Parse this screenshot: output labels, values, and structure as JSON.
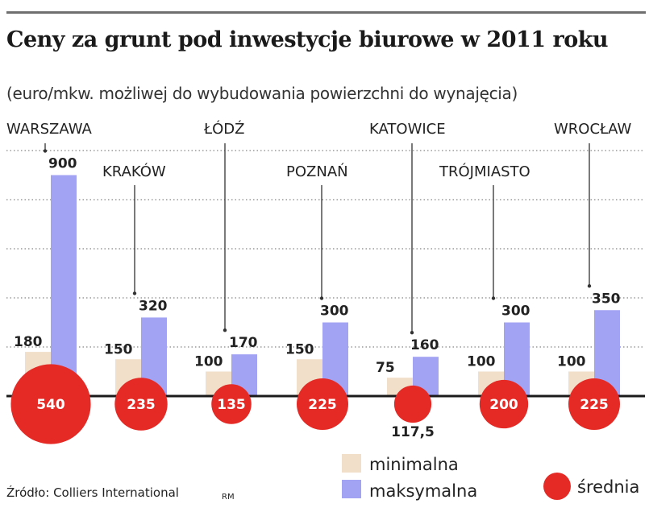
{
  "chart_data": {
    "type": "bar",
    "title": "Ceny za grunt pod inwestycje biurowe w 2011 roku",
    "subtitle": "(euro/mkw. możliwej do wybudowania powierzchni do wynajęcia)",
    "categories": [
      "WARSZAWA",
      "KRAKÓW",
      "ŁÓDŹ",
      "POZNAŃ",
      "KATOWICE",
      "TRÓJMIASTO",
      "WROCŁAW"
    ],
    "series": [
      {
        "name": "minimalna",
        "color": "#f2dfc9",
        "values": [
          180,
          150,
          100,
          150,
          75,
          100,
          100
        ],
        "labels": [
          "180",
          "150",
          "100",
          "150",
          "75",
          "100",
          "100"
        ]
      },
      {
        "name": "maksymalna",
        "color": "#a3a3f4",
        "values": [
          900,
          320,
          170,
          300,
          160,
          300,
          350
        ],
        "labels": [
          "900",
          "320",
          "170",
          "300",
          "160",
          "300",
          "350"
        ]
      },
      {
        "name": "średnia",
        "color": "#e52a26",
        "values": [
          540,
          235,
          135,
          225,
          117.5,
          200,
          225
        ],
        "labels": [
          "540",
          "235",
          "135",
          "225",
          "117,5",
          "200",
          "225"
        ]
      }
    ],
    "ylim": [
      0,
      1000
    ],
    "gridlines": [
      200,
      400,
      600,
      800,
      1000
    ],
    "legend_position": "bottom-right"
  },
  "source": "Źródło: Colliers International",
  "author_mark": "RM"
}
